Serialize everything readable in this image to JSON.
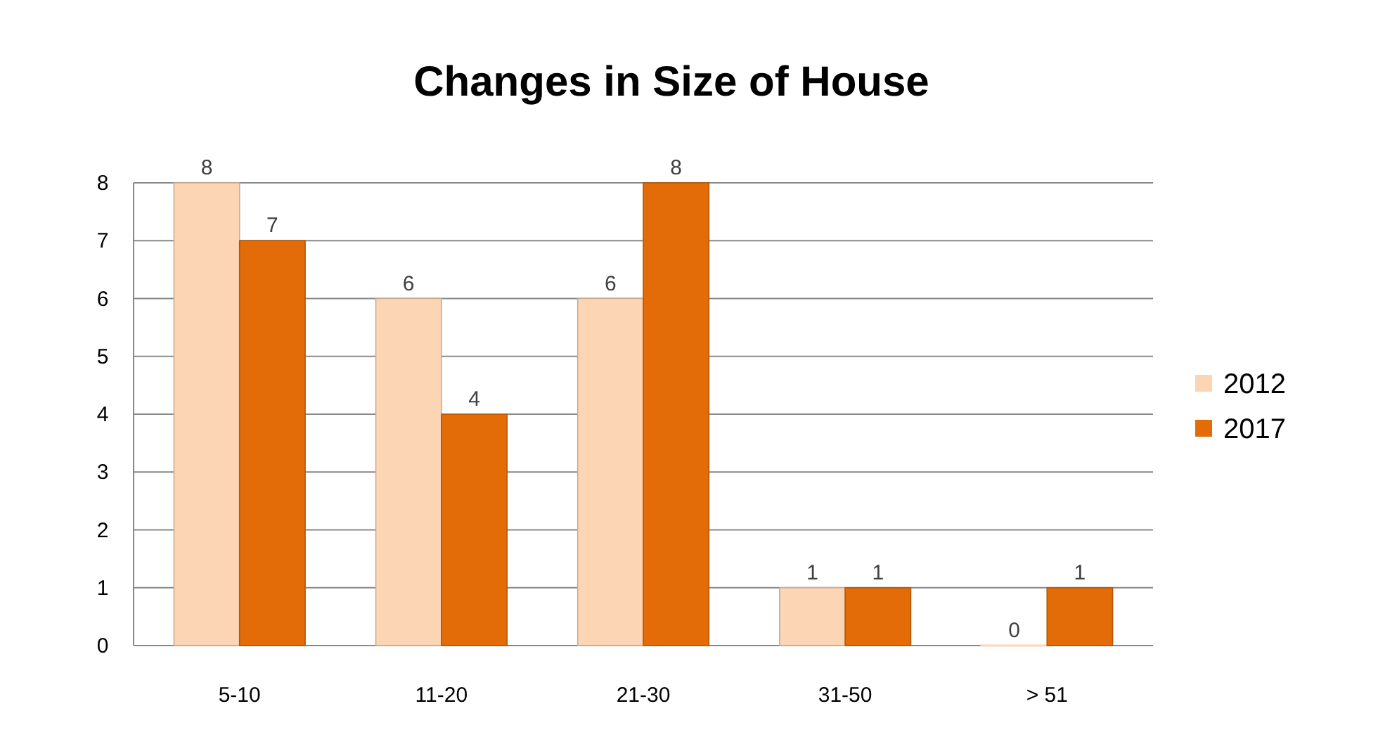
{
  "chart_data": {
    "type": "bar",
    "title": "Changes in Size of House",
    "categories": [
      "5-10",
      "11-20",
      "21-30",
      "31-50",
      "> 51"
    ],
    "series": [
      {
        "name": "2012",
        "color": "#fcd5b4",
        "values": [
          8,
          6,
          6,
          1,
          0
        ]
      },
      {
        "name": "2017",
        "color": "#e36c09",
        "values": [
          7,
          4,
          8,
          1,
          1
        ]
      }
    ],
    "ylim": [
      0,
      8
    ],
    "yticks": [
      0,
      1,
      2,
      3,
      4,
      5,
      6,
      7,
      8
    ],
    "grid": "y",
    "legend": "right",
    "data_labels": true
  }
}
